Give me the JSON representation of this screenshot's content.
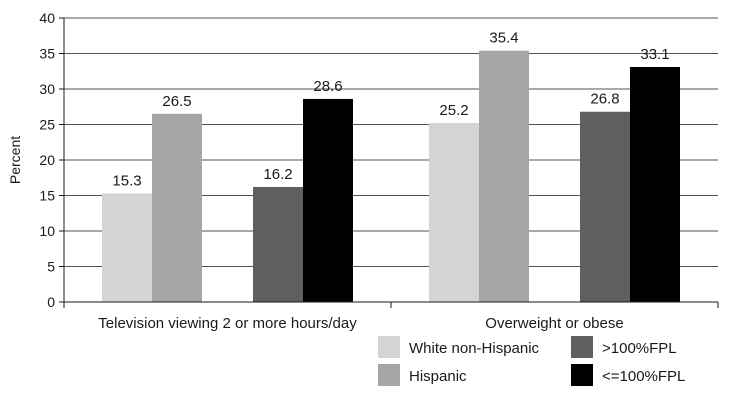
{
  "chart_data": {
    "type": "bar",
    "title": "",
    "xlabel": "",
    "ylabel": "Percent",
    "ylim": [
      0,
      40
    ],
    "yticks": [
      0,
      5,
      10,
      15,
      20,
      25,
      30,
      35,
      40
    ],
    "grid": true,
    "legend_position": "bottom-right",
    "groups": [
      {
        "label": "Television viewing 2 or more hours/day",
        "bars": [
          {
            "series": "White non-Hispanic",
            "value": 15.3
          },
          {
            "series": "Hispanic",
            "value": 26.5
          },
          {
            "series": ">100%FPL",
            "value": 16.2
          },
          {
            "series": "<=100%FPL",
            "value": 28.6
          }
        ]
      },
      {
        "label": "Overweight or obese",
        "bars": [
          {
            "series": "White non-Hispanic",
            "value": 25.2
          },
          {
            "series": "Hispanic",
            "value": 35.4
          },
          {
            "series": ">100%FPL",
            "value": 26.8
          },
          {
            "series": "<=100%FPL",
            "value": 33.1
          }
        ]
      }
    ],
    "series": [
      {
        "name": "White non-Hispanic",
        "color": "#d4d4d4"
      },
      {
        "name": "Hispanic",
        "color": "#a6a6a6"
      },
      {
        "name": ">100%FPL",
        "color": "#5f5f5f"
      },
      {
        "name": "<=100%FPL",
        "color": "#000000"
      }
    ]
  }
}
